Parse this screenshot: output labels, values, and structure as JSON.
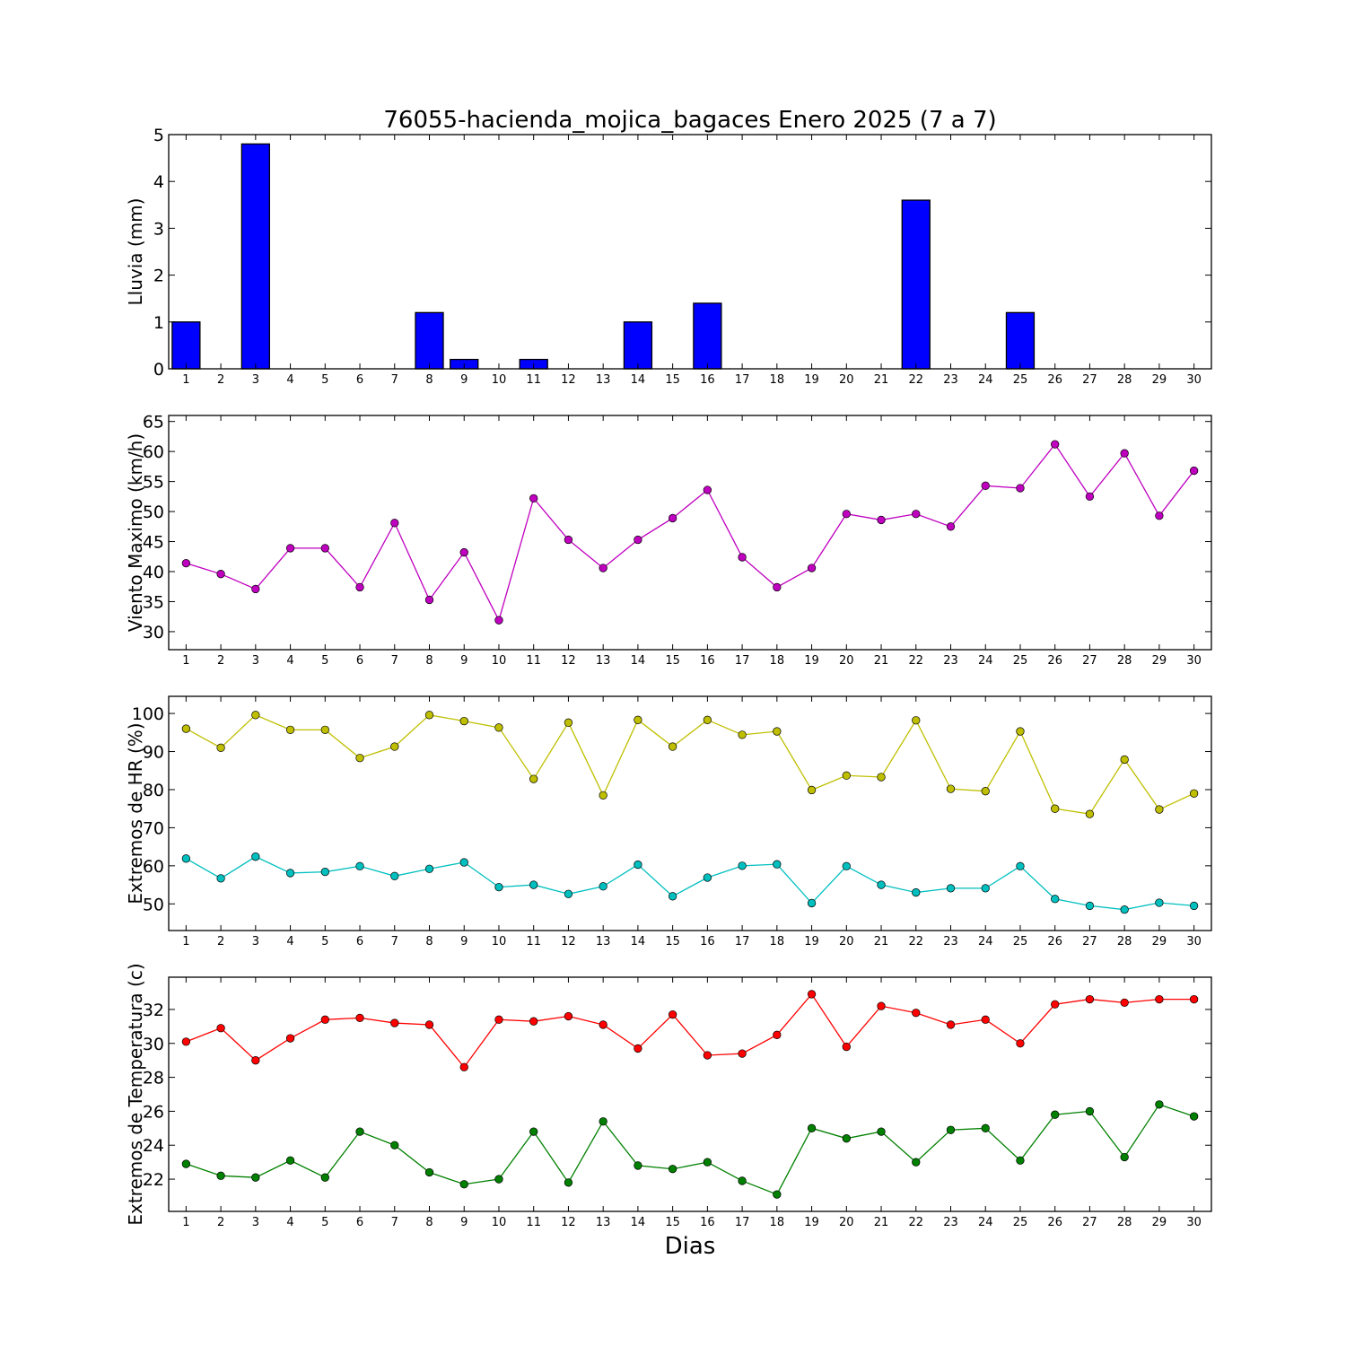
{
  "chart_data": {
    "title": "76055-hacienda_mojica_bagaces Enero 2025  (7 a 7)",
    "xlabel": "Dias",
    "x": [
      1,
      2,
      3,
      4,
      5,
      6,
      7,
      8,
      9,
      10,
      11,
      12,
      13,
      14,
      15,
      16,
      17,
      18,
      19,
      20,
      21,
      22,
      23,
      24,
      25,
      26,
      27,
      28,
      29,
      30
    ],
    "panels": [
      {
        "type": "bar",
        "ylabel": "Lluvia (mm)",
        "ylim": [
          0,
          5
        ],
        "yticks": [
          0,
          1,
          2,
          3,
          4,
          5
        ],
        "grid": false,
        "series": [
          {
            "color": "#0000ff",
            "values": [
              1.0,
              0,
              4.8,
              0,
              0,
              0,
              0,
              1.2,
              0.2,
              0,
              0.2,
              0,
              0,
              1.0,
              0,
              1.4,
              0,
              0,
              0,
              0,
              0,
              3.6,
              0,
              0,
              1.2,
              0,
              0,
              0,
              0,
              0
            ]
          }
        ]
      },
      {
        "type": "line",
        "ylabel": "Viento Maximo (km/h)",
        "ylim": [
          27,
          66
        ],
        "yticks": [
          30,
          35,
          40,
          45,
          50,
          55,
          60,
          65
        ],
        "grid": false,
        "series": [
          {
            "color": "#bf00bf",
            "values": [
              41.4,
              39.6,
              37.1,
              43.9,
              43.9,
              37.4,
              48.1,
              35.3,
              43.2,
              31.9,
              52.2,
              45.3,
              40.6,
              45.3,
              48.9,
              53.6,
              42.4,
              37.4,
              40.6,
              49.6,
              48.6,
              49.6,
              47.5,
              54.3,
              53.9,
              61.2,
              52.5,
              59.7,
              49.3,
              56.8
            ]
          }
        ]
      },
      {
        "type": "line",
        "ylabel": "Extremos de HR (%)",
        "ylim": [
          43,
          104.5
        ],
        "yticks": [
          50,
          60,
          70,
          80,
          90,
          100
        ],
        "grid": false,
        "series": [
          {
            "color": "#bfbf00",
            "values": [
              96,
              91,
              99.6,
              95.7,
              95.7,
              88.3,
              91.3,
              99.6,
              98,
              96.3,
              82.8,
              97.6,
              78.5,
              98.3,
              91.3,
              98.3,
              94.4,
              95.3,
              79.9,
              83.7,
              83.3,
              98.2,
              80.2,
              79.6,
              95.3,
              75,
              73.6,
              87.9,
              74.8,
              79
            ]
          },
          {
            "color": "#00bfbf",
            "values": [
              61.9,
              56.7,
              62.4,
              58.1,
              58.4,
              59.9,
              57.3,
              59.2,
              60.9,
              54.4,
              55,
              52.6,
              54.6,
              60.3,
              52,
              56.9,
              60,
              60.4,
              50.2,
              59.9,
              55,
              53,
              54.1,
              54.1,
              59.9,
              51.3,
              49.5,
              48.5,
              50.3,
              49.5
            ]
          }
        ]
      },
      {
        "type": "line",
        "ylabel": "Extremos de Temperatura (c)",
        "ylim": [
          20.1,
          33.9
        ],
        "yticks": [
          22,
          24,
          26,
          28,
          30,
          32
        ],
        "grid": false,
        "series": [
          {
            "color": "#ff0000",
            "values": [
              30.1,
              30.9,
              29,
              30.3,
              31.4,
              31.5,
              31.2,
              31.1,
              28.6,
              31.4,
              31.3,
              31.6,
              31.1,
              29.7,
              31.7,
              29.3,
              29.4,
              30.5,
              32.9,
              29.8,
              32.2,
              31.8,
              31.1,
              31.4,
              30,
              32.3,
              32.6,
              32.4,
              32.6,
              32.6
            ]
          },
          {
            "color": "#008000",
            "values": [
              22.9,
              22.2,
              22.1,
              23.1,
              22.1,
              24.8,
              24,
              22.4,
              21.7,
              22,
              24.8,
              21.8,
              25.4,
              22.8,
              22.6,
              23,
              21.9,
              21.1,
              25,
              24.4,
              24.8,
              23,
              24.9,
              25,
              23.1,
              25.8,
              26,
              23.3,
              26.4,
              25.7
            ]
          }
        ]
      }
    ]
  }
}
